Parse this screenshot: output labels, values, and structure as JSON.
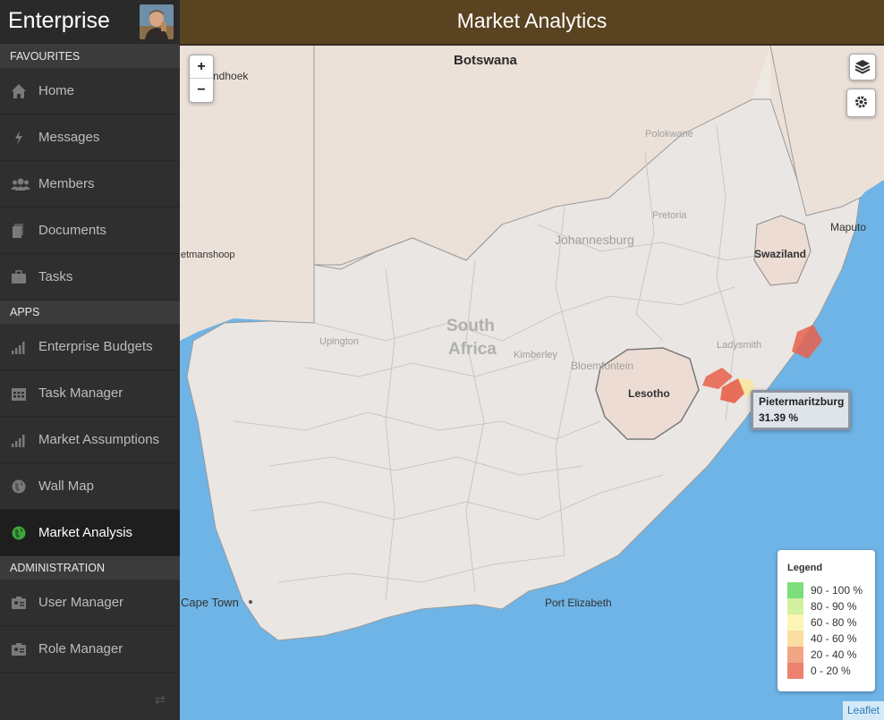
{
  "app": {
    "brand": "Enterprise"
  },
  "header": {
    "title": "Market Analytics"
  },
  "sidebar": {
    "sections": [
      {
        "label": "FAVOURITES",
        "items": [
          {
            "label": "Home",
            "icon": "home-icon"
          },
          {
            "label": "Messages",
            "icon": "bolt-icon"
          },
          {
            "label": "Members",
            "icon": "users-icon"
          },
          {
            "label": "Documents",
            "icon": "documents-icon"
          },
          {
            "label": "Tasks",
            "icon": "briefcase-icon"
          }
        ]
      },
      {
        "label": "APPS",
        "items": [
          {
            "label": "Enterprise Budgets",
            "icon": "signal-icon"
          },
          {
            "label": "Task Manager",
            "icon": "calendar-icon"
          },
          {
            "label": "Market Assumptions",
            "icon": "signal-icon"
          },
          {
            "label": "Wall Map",
            "icon": "globe-icon"
          },
          {
            "label": "Market Analysis",
            "icon": "globe-icon",
            "active": true
          }
        ]
      },
      {
        "label": "ADMINISTRATION",
        "items": [
          {
            "label": "User Manager",
            "icon": "id-card-icon"
          },
          {
            "label": "Role Manager",
            "icon": "id-card-icon"
          }
        ]
      }
    ]
  },
  "map": {
    "labels": {
      "botswana": "Botswana",
      "windhoek": "ndhoek",
      "keetmanshoop": "etmanshoop",
      "maputo": "Maputo",
      "swaziland": "Swaziland",
      "lesotho": "Lesotho",
      "south_africa_1": "South",
      "south_africa_2": "Africa",
      "upington": "Upington",
      "kimberley": "Kimberley",
      "bloemfontein": "Bloemfontein",
      "johannesburg": "Johannesburg",
      "pretoria": "Pretoria",
      "polokwane": "Polokwane",
      "ladysmith": "Ladysmith",
      "cape_town": "Cape Town",
      "port_elizabeth": "Port Elizabeth"
    },
    "zoom_in": "+",
    "zoom_out": "−",
    "tooltip": {
      "name": "Pietermaritzburg",
      "value": "31.39 %"
    },
    "attribution": "Leaflet"
  },
  "legend": {
    "title": "Legend",
    "items": [
      {
        "label": "90 - 100 %",
        "color": "#5cd65c"
      },
      {
        "label": "80 - 90 %",
        "color": "#c8ec8a"
      },
      {
        "label": "60 - 80 %",
        "color": "#fbf2a4"
      },
      {
        "label": "40 - 60 %",
        "color": "#f9d58a"
      },
      {
        "label": "20 - 40 %",
        "color": "#ef8f66"
      },
      {
        "label": "0 - 20 %",
        "color": "#e8604a"
      }
    ]
  }
}
